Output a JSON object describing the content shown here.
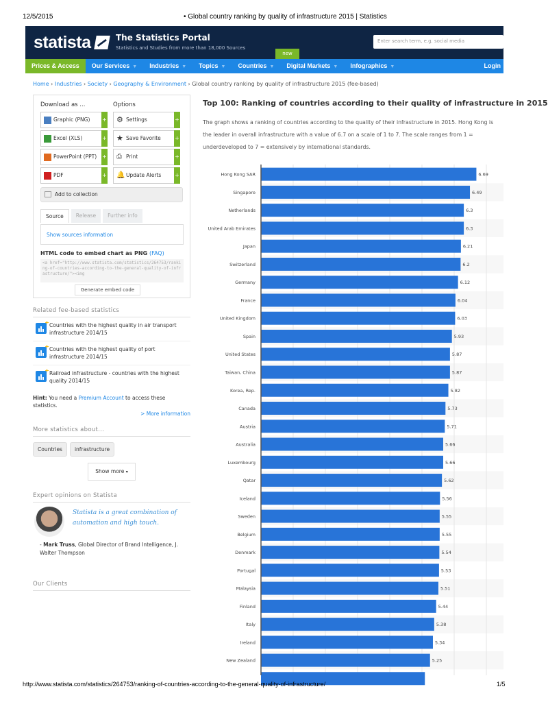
{
  "print_header": {
    "date": "12/5/2015",
    "title": "• Global country ranking by quality of infrastructure 2015 | Statistics"
  },
  "print_footer": {
    "url": "http://www.statista.com/statistics/264753/ranking-of-countries-according-to-the-general-quality-of-infrastructure/",
    "page": "1/5"
  },
  "header": {
    "logo": "statista",
    "portal_title": "The Statistics Portal",
    "portal_subtitle": "Statistics and Studies from more than 18,000 Sources",
    "search_placeholder": "Enter search term, e.g. social media",
    "new_badge": "new"
  },
  "nav": {
    "items": [
      "Prices & Access",
      "Our Services",
      "Industries",
      "Topics",
      "Countries",
      "Digital Markets",
      "Infographics"
    ],
    "login": "Login"
  },
  "breadcrumb": {
    "items": [
      "Home",
      "Industries",
      "Society",
      "Geography & Environment"
    ],
    "current": "Global country ranking by quality of infrastructure 2015 (fee-based)"
  },
  "sidebar": {
    "download_title": "Download as ...",
    "options_title": "Options",
    "download": [
      "Graphic (PNG)",
      "Excel (XLS)",
      "PowerPoint (PPT)",
      "PDF"
    ],
    "options": [
      "Settings",
      "Save Favorite",
      "Print",
      "Update Alerts"
    ],
    "add_collection": "Add to collection",
    "tabs": [
      "Source",
      "Release",
      "Further info"
    ],
    "show_sources": "Show sources information",
    "embed_title": "HTML code to embed chart as PNG",
    "embed_faq": "(FAQ)",
    "embed_code": "<a href=\"http://www.statista.com/statistics/264753/ranking-of-countries-according-to-the-general-quality-of-infrastructure/\"><img",
    "generate_embed": "Generate embed code",
    "related_title": "Related fee-based statistics",
    "related": [
      "Countries with the highest quality in air transport infrastructure 2014/15",
      "Countries with the highest quality of port infrastructure 2014/15",
      "Railroad infrastructure - countries with the highest quality 2014/15"
    ],
    "hint_label": "Hint:",
    "hint_pre": " You need a ",
    "hint_link": "Premium Account",
    "hint_post": " to access these statistics.",
    "more_info": "> More information",
    "more_title": "More statistics about...",
    "tags": [
      "Countries",
      "infrastructure"
    ],
    "show_more": "Show more",
    "expert_title": "Expert opinions on Statista",
    "quote": "Statista is a great combination of automation and high touch.",
    "quote_name": "Mark Truss",
    "quote_role": ", Global Director of Brand Intelligence, J. Walter Thompson",
    "quote_dash": "- ",
    "clients_title": "Our Clients"
  },
  "main": {
    "title": "Top 100: Ranking of countries according to their quality of infrastructure in 2015",
    "description": "The graph shows a ranking of countries according to the quality of their infrastructure in 2015. Hong Kong is the leader in overall infrastructure with a value of 6.7 on a scale of 1 to 7. The scale ranges from 1 = underdeveloped to 7 = extensively by international standards."
  },
  "colors": {
    "bar": "#2874d8",
    "brand_navy": "#0f2544",
    "nav_blue": "#1e87e5",
    "accent_green": "#7ab829"
  },
  "chart_data": {
    "type": "bar",
    "orientation": "horizontal",
    "xlim": [
      0,
      7.5
    ],
    "grid": true,
    "categories": [
      "Hong Kong SAR",
      "Singapore",
      "Netherlands",
      "United Arab Emirates",
      "Japan",
      "Switzerland",
      "Germany",
      "France",
      "United Kingdom",
      "Spain",
      "United States",
      "Taiwan, China",
      "Korea, Rep.",
      "Canada",
      "Austria",
      "Australia",
      "Luxembourg",
      "Qatar",
      "Iceland",
      "Sweden",
      "Belgium",
      "Denmark",
      "Portugal",
      "Malaysia",
      "Finland",
      "Italy",
      "Ireland",
      "New Zealand"
    ],
    "values": [
      6.69,
      6.49,
      6.3,
      6.3,
      6.21,
      6.2,
      6.12,
      6.04,
      6.03,
      5.93,
      5.87,
      5.87,
      5.82,
      5.73,
      5.71,
      5.66,
      5.66,
      5.62,
      5.56,
      5.55,
      5.55,
      5.54,
      5.53,
      5.51,
      5.44,
      5.38,
      5.34,
      5.25
    ],
    "labels": [
      "6.69",
      "6.49",
      "6.3",
      "6.3",
      "6.21",
      "6.2",
      "6.12",
      "6.04",
      "6.03",
      "5.93",
      "5.87",
      "5.87",
      "5.82",
      "5.73",
      "5.71",
      "5.66",
      "5.66",
      "5.62",
      "5.56",
      "5.55",
      "5.55",
      "5.54",
      "5.53",
      "5.51",
      "5.44",
      "5.38",
      "5.34",
      "5.25"
    ]
  }
}
